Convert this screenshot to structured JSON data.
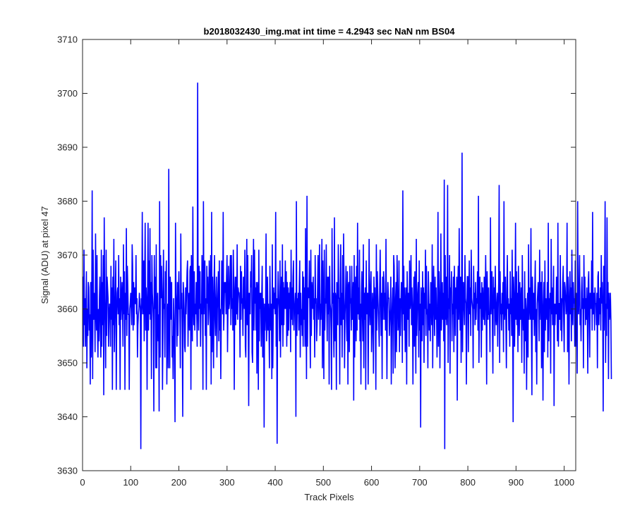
{
  "chart_data": {
    "type": "line",
    "title": "b2018032430_img.mat int time = 4.2943 sec  NaN nm BS04",
    "xlabel": "Track Pixels",
    "ylabel": "Signal (ADU) at pixel 47",
    "xlim": [
      0,
      1024
    ],
    "ylim": [
      3630,
      3710
    ],
    "xticks": [
      0,
      100,
      200,
      300,
      400,
      500,
      600,
      700,
      800,
      900,
      1000
    ],
    "yticks": [
      3630,
      3640,
      3650,
      3660,
      3670,
      3680,
      3690,
      3700,
      3710
    ],
    "grid": false,
    "legend": "none",
    "line_color": "#0000ff",
    "series": [
      {
        "x_start": 1,
        "x_step": 1,
        "values": [
          3666,
          3653,
          3671,
          3657,
          3662,
          3653,
          3660,
          3667,
          3649,
          3660,
          3655,
          3665,
          3664,
          3656,
          3659,
          3646,
          3665,
          3651,
          3660,
          3682,
          3647,
          3671,
          3658,
          3663,
          3662,
          3652,
          3674,
          3661,
          3656,
          3670,
          3656,
          3651,
          3660,
          3654,
          3662,
          3666,
          3656,
          3651,
          3671,
          3653,
          3665,
          3657,
          3670,
          3644,
          3677,
          3662,
          3657,
          3649,
          3671,
          3655,
          3666,
          3664,
          3662,
          3653,
          3659,
          3661,
          3660,
          3653,
          3668,
          3658,
          3664,
          3645,
          3666,
          3657,
          3673,
          3652,
          3658,
          3663,
          3669,
          3645,
          3659,
          3663,
          3664,
          3659,
          3670,
          3657,
          3662,
          3645,
          3666,
          3658,
          3661,
          3665,
          3660,
          3653,
          3672,
          3659,
          3667,
          3645,
          3663,
          3658,
          3675,
          3655,
          3668,
          3664,
          3659,
          3659,
          3645,
          3660,
          3661,
          3663,
          3660,
          3657,
          3672,
          3668,
          3656,
          3665,
          3657,
          3664,
          3661,
          3661,
          3670,
          3659,
          3662,
          3651,
          3657,
          3659,
          3660,
          3663,
          3661,
          3660,
          3634,
          3662,
          3659,
          3678,
          3661,
          3659,
          3669,
          3654,
          3665,
          3676,
          3656,
          3664,
          3661,
          3645,
          3663,
          3676,
          3656,
          3669,
          3659,
          3675,
          3658,
          3665,
          3647,
          3670,
          3663,
          3661,
          3658,
          3641,
          3670,
          3660,
          3666,
          3649,
          3672,
          3649,
          3660,
          3663,
          3654,
          3659,
          3641,
          3680,
          3651,
          3670,
          3662,
          3668,
          3663,
          3645,
          3657,
          3671,
          3660,
          3661,
          3651,
          3667,
          3665,
          3669,
          3646,
          3658,
          3661,
          3649,
          3686,
          3660,
          3649,
          3666,
          3664,
          3658,
          3665,
          3651,
          3655,
          3647,
          3662,
          3658,
          3651,
          3639,
          3676,
          3663,
          3660,
          3653,
          3665,
          3655,
          3662,
          3667,
          3660,
          3660,
          3649,
          3674,
          3660,
          3663,
          3655,
          3640,
          3665,
          3663,
          3660,
          3653,
          3652,
          3664,
          3659,
          3663,
          3667,
          3669,
          3653,
          3661,
          3663,
          3656,
          3667,
          3668,
          3645,
          3670,
          3662,
          3654,
          3679,
          3661,
          3657,
          3667,
          3656,
          3661,
          3659,
          3665,
          3660,
          3653,
          3702,
          3660,
          3656,
          3668,
          3660,
          3667,
          3653,
          3661,
          3659,
          3670,
          3663,
          3645,
          3680,
          3659,
          3664,
          3669,
          3655,
          3662,
          3645,
          3668,
          3661,
          3666,
          3657,
          3660,
          3669,
          3664,
          3655,
          3670,
          3646,
          3678,
          3652,
          3666,
          3660,
          3649,
          3665,
          3670,
          3658,
          3655,
          3662,
          3666,
          3651,
          3660,
          3663,
          3667,
          3654,
          3669,
          3656,
          3660,
          3647,
          3658,
          3669,
          3664,
          3659,
          3678,
          3656,
          3660,
          3665,
          3663,
          3665,
          3659,
          3666,
          3670,
          3652,
          3660,
          3668,
          3660,
          3661,
          3666,
          3670,
          3657,
          3670,
          3660,
          3662,
          3656,
          3671,
          3664,
          3645,
          3662,
          3666,
          3657,
          3666,
          3659,
          3672,
          3658,
          3664,
          3663,
          3663,
          3661,
          3651,
          3668,
          3658,
          3667,
          3661,
          3662,
          3655,
          3666,
          3664,
          3660,
          3671,
          3653,
          3651,
          3663,
          3673,
          3657,
          3670,
          3659,
          3642,
          3663,
          3662,
          3659,
          3667,
          3664,
          3670,
          3652,
          3650,
          3663,
          3673,
          3656,
          3671,
          3661,
          3664,
          3656,
          3665,
          3648,
          3665,
          3663,
          3645,
          3671,
          3654,
          3663,
          3660,
          3663,
          3653,
          3662,
          3668,
          3651,
          3662,
          3659,
          3638,
          3661,
          3656,
          3660,
          3674,
          3654,
          3658,
          3666,
          3656,
          3661,
          3657,
          3649,
          3668,
          3660,
          3656,
          3661,
          3647,
          3672,
          3649,
          3659,
          3664,
          3660,
          3663,
          3659,
          3678,
          3653,
          3662,
          3635,
          3660,
          3667,
          3662,
          3660,
          3654,
          3669,
          3651,
          3660,
          3666,
          3657,
          3672,
          3653,
          3665,
          3657,
          3664,
          3660,
          3669,
          3660,
          3667,
          3653,
          3665,
          3655,
          3664,
          3656,
          3663,
          3660,
          3665,
          3652,
          3671,
          3658,
          3664,
          3657,
          3666,
          3669,
          3656,
          3660,
          3661,
          3663,
          3640,
          3680,
          3655,
          3662,
          3659,
          3663,
          3656,
          3664,
          3669,
          3651,
          3663,
          3657,
          3660,
          3655,
          3667,
          3653,
          3666,
          3658,
          3664,
          3653,
          3675,
          3661,
          3647,
          3681,
          3653,
          3663,
          3664,
          3662,
          3669,
          3658,
          3649,
          3671,
          3655,
          3665,
          3663,
          3660,
          3666,
          3658,
          3662,
          3651,
          3670,
          3661,
          3662,
          3654,
          3657,
          3664,
          3670,
          3658,
          3664,
          3672,
          3655,
          3661,
          3658,
          3665,
          3673,
          3649,
          3669,
          3660,
          3647,
          3671,
          3656,
          3662,
          3661,
          3672,
          3661,
          3654,
          3666,
          3659,
          3666,
          3646,
          3668,
          3661,
          3660,
          3656,
          3645,
          3675,
          3661,
          3663,
          3656,
          3651,
          3677,
          3654,
          3663,
          3662,
          3645,
          3665,
          3661,
          3657,
          3672,
          3662,
          3662,
          3646,
          3664,
          3672,
          3657,
          3663,
          3651,
          3670,
          3658,
          3674,
          3664,
          3649,
          3659,
          3662,
          3668,
          3658,
          3654,
          3667,
          3646,
          3664,
          3665,
          3652,
          3668,
          3661,
          3662,
          3656,
          3668,
          3658,
          3660,
          3665,
          3643,
          3670,
          3651,
          3662,
          3666,
          3654,
          3668,
          3656,
          3676,
          3659,
          3664,
          3658,
          3671,
          3654,
          3661,
          3646,
          3663,
          3667,
          3659,
          3654,
          3672,
          3649,
          3663,
          3658,
          3664,
          3645,
          3669,
          3659,
          3662,
          3663,
          3646,
          3658,
          3673,
          3660,
          3657,
          3664,
          3667,
          3652,
          3656,
          3663,
          3660,
          3648,
          3666,
          3660,
          3664,
          3658,
          3645,
          3672,
          3656,
          3667,
          3663,
          3660,
          3657,
          3653,
          3664,
          3671,
          3661,
          3655,
          3663,
          3647,
          3666,
          3658,
          3667,
          3665,
          3658,
          3663,
          3656,
          3673,
          3659,
          3647,
          3660,
          3665,
          3662,
          3662,
          3655,
          3658,
          3660,
          3666,
          3646,
          3657,
          3661,
          3664,
          3648,
          3670,
          3668,
          3658,
          3649,
          3662,
          3665,
          3652,
          3670,
          3664,
          3656,
          3658,
          3669,
          3652,
          3662,
          3655,
          3661,
          3665,
          3663,
          3650,
          3682,
          3659,
          3668,
          3656,
          3664,
          3652,
          3661,
          3664,
          3646,
          3667,
          3661,
          3658,
          3663,
          3653,
          3669,
          3660,
          3662,
          3670,
          3657,
          3664,
          3659,
          3646,
          3661,
          3666,
          3653,
          3667,
          3662,
          3648,
          3673,
          3655,
          3660,
          3663,
          3665,
          3651,
          3669,
          3656,
          3661,
          3638,
          3664,
          3660,
          3654,
          3667,
          3657,
          3664,
          3650,
          3663,
          3660,
          3671,
          3655,
          3668,
          3659,
          3660,
          3649,
          3667,
          3662,
          3656,
          3661,
          3654,
          3665,
          3663,
          3657,
          3672,
          3649,
          3661,
          3668,
          3660,
          3655,
          3666,
          3658,
          3664,
          3659,
          3651,
          3660,
          3678,
          3653,
          3667,
          3662,
          3649,
          3661,
          3674,
          3656,
          3660,
          3665,
          3658,
          3663,
          3654,
          3684,
          3634,
          3670,
          3658,
          3666,
          3657,
          3661,
          3683,
          3650,
          3662,
          3660,
          3670,
          3648,
          3664,
          3663,
          3667,
          3654,
          3661,
          3659,
          3666,
          3652,
          3668,
          3661,
          3655,
          3664,
          3660,
          3666,
          3643,
          3663,
          3668,
          3658,
          3675,
          3662,
          3656,
          3666,
          3650,
          3661,
          3689,
          3652,
          3663,
          3665,
          3660,
          3657,
          3670,
          3662,
          3661,
          3646,
          3660,
          3666,
          3666,
          3652,
          3662,
          3669,
          3659,
          3664,
          3655,
          3671,
          3662,
          3661,
          3660,
          3649,
          3668,
          3660,
          3663,
          3657,
          3665,
          3658,
          3662,
          3661,
          3667,
          3656,
          3681,
          3650,
          3659,
          3666,
          3660,
          3663,
          3651,
          3665,
          3656,
          3664,
          3660,
          3658,
          3666,
          3657,
          3661,
          3670,
          3661,
          3646,
          3667,
          3662,
          3658,
          3664,
          3659,
          3659,
          3652,
          3677,
          3659,
          3662,
          3667,
          3657,
          3648,
          3666,
          3660,
          3664,
          3655,
          3668,
          3659,
          3657,
          3661,
          3663,
          3653,
          3660,
          3665,
          3683,
          3650,
          3667,
          3659,
          3661,
          3656,
          3663,
          3659,
          3665,
          3652,
          3680,
          3658,
          3660,
          3666,
          3657,
          3649,
          3663,
          3670,
          3660,
          3662,
          3656,
          3661,
          3653,
          3667,
          3659,
          3662,
          3655,
          3671,
          3659,
          3639,
          3666,
          3662,
          3653,
          3661,
          3676,
          3658,
          3667,
          3657,
          3663,
          3652,
          3668,
          3661,
          3655,
          3665,
          3658,
          3660,
          3664,
          3650,
          3670,
          3662,
          3656,
          3660,
          3648,
          3667,
          3654,
          3662,
          3659,
          3645,
          3660,
          3663,
          3651,
          3672,
          3658,
          3661,
          3664,
          3658,
          3675,
          3656,
          3644,
          3666,
          3661,
          3658,
          3663,
          3655,
          3664,
          3669,
          3652,
          3660,
          3646,
          3661,
          3663,
          3665,
          3660,
          3654,
          3671,
          3662,
          3658,
          3665,
          3649,
          3667,
          3659,
          3643,
          3660,
          3665,
          3652,
          3669,
          3656,
          3662,
          3660,
          3658,
          3665,
          3651,
          3676,
          3654,
          3662,
          3660,
          3663,
          3648,
          3673,
          3659,
          3664,
          3657,
          3660,
          3668,
          3642,
          3661,
          3657,
          3661,
          3659,
          3666,
          3661,
          3654,
          3676,
          3653,
          3661,
          3661,
          3658,
          3670,
          3656,
          3662,
          3654,
          3660,
          3665,
          3668,
          3658,
          3652,
          3665,
          3664,
          3662,
          3659,
          3661,
          3676,
          3652,
          3666,
          3660,
          3646,
          3663,
          3667,
          3659,
          3664,
          3654,
          3671,
          3660,
          3657,
          3665,
          3661,
          3662,
          3653,
          3669,
          3653,
          3663,
          3660,
          3648,
          3680,
          3661,
          3659,
          3664,
          3670,
          3657,
          3660,
          3654,
          3663,
          3666,
          3660,
          3662,
          3649,
          3670,
          3660,
          3666,
          3657,
          3662,
          3658,
          3664,
          3660,
          3648,
          3665,
          3667,
          3659,
          3651,
          3663,
          3662,
          3660,
          3669,
          3656,
          3678,
          3659,
          3660,
          3663,
          3656,
          3664,
          3661,
          3661,
          3657,
          3663,
          3649,
          3666,
          3667,
          3657,
          3662,
          3659,
          3664,
          3656,
          3670,
          3661,
          3665,
          3659,
          3641,
          3668,
          3656,
          3664,
          3680,
          3650,
          3661,
          3655,
          3677,
          3660,
          3665,
          3647,
          3663,
          3658,
          3659,
          3663,
          3658,
          3647
        ]
      }
    ]
  }
}
